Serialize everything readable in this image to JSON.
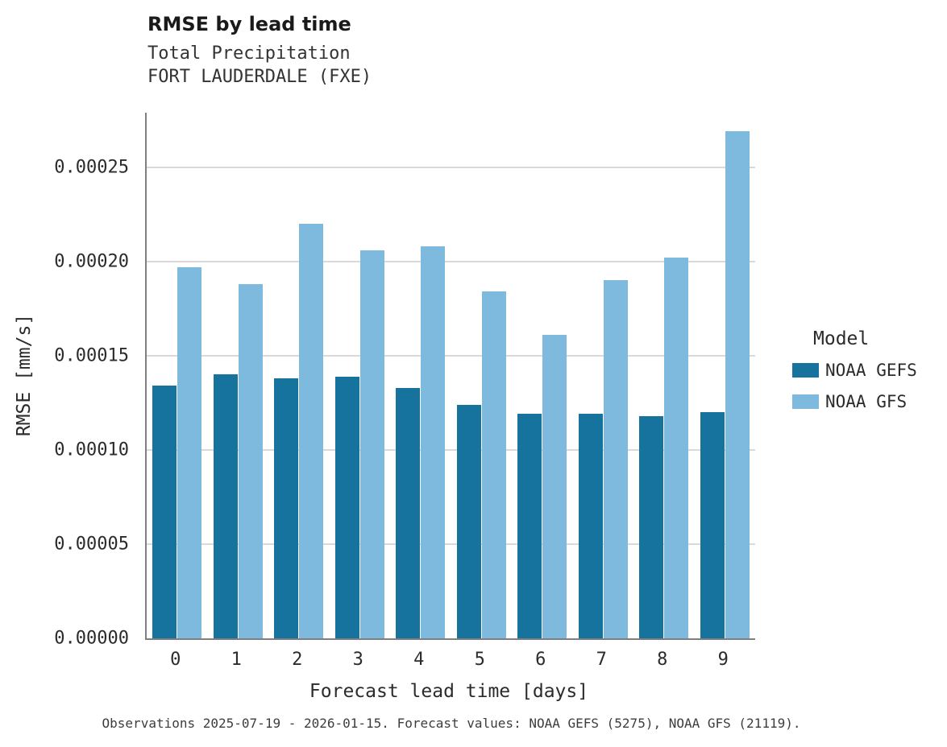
{
  "header": {
    "title": "RMSE by lead time",
    "subtitle1": "Total Precipitation",
    "subtitle2": "FORT LAUDERDALE (FXE)"
  },
  "chart_data": {
    "type": "bar",
    "title": "RMSE by lead time",
    "subtitle": [
      "Total Precipitation",
      "FORT LAUDERDALE (FXE)"
    ],
    "xlabel": "Forecast lead time [days]",
    "ylabel": "RMSE [mm/s]",
    "categories": [
      "0",
      "1",
      "2",
      "3",
      "4",
      "5",
      "6",
      "7",
      "8",
      "9"
    ],
    "series": [
      {
        "name": "NOAA GEFS",
        "color": "#16739d",
        "values": [
          0.000134,
          0.00014,
          0.000138,
          0.000139,
          0.000133,
          0.000124,
          0.000119,
          0.000119,
          0.000118,
          0.00012
        ]
      },
      {
        "name": "NOAA GFS",
        "color": "#7dbade",
        "values": [
          0.000197,
          0.000188,
          0.00022,
          0.000206,
          0.000208,
          0.000184,
          0.000161,
          0.00019,
          0.000202,
          0.000269
        ]
      }
    ],
    "ylim": [
      0,
      0.000279
    ],
    "yticks": [
      0,
      5e-05,
      0.0001,
      0.00015,
      0.0002,
      0.00025
    ],
    "ytick_decimals": 5,
    "grid": true,
    "legend_position": "right"
  },
  "legend": {
    "title": "Model",
    "items": [
      {
        "label": "NOAA GEFS",
        "color": "#16739d"
      },
      {
        "label": "NOAA GFS",
        "color": "#7dbade"
      }
    ]
  },
  "footer": {
    "note": "Observations 2025-07-19 - 2026-01-15. Forecast values: NOAA GEFS (5275), NOAA GFS (21119)."
  }
}
